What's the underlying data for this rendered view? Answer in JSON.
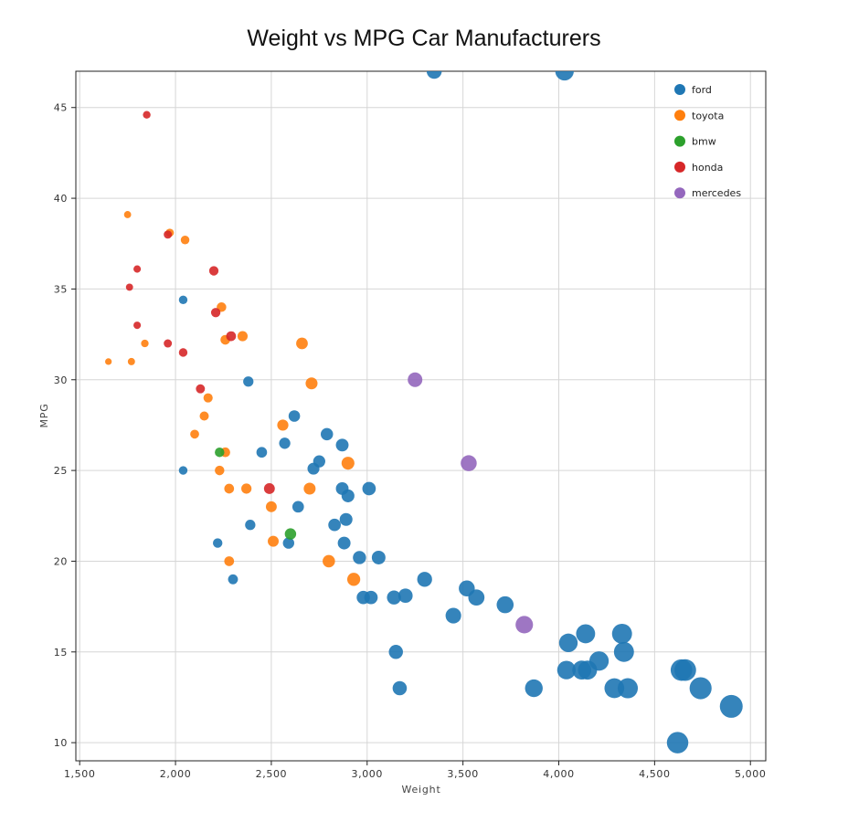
{
  "chart_data": {
    "type": "scatter",
    "title": "Weight vs MPG Car Manufacturers",
    "xlabel": "Weight",
    "ylabel": "MPG",
    "xlim": [
      1480,
      5080
    ],
    "ylim": [
      9,
      47
    ],
    "x_ticks": [
      1500,
      2000,
      2500,
      3000,
      3500,
      4000,
      4500,
      5000
    ],
    "x_tick_labels": [
      "1,500",
      "2,000",
      "2,500",
      "3,000",
      "3,500",
      "4,000",
      "4,500",
      "5,000"
    ],
    "y_ticks": [
      10,
      15,
      20,
      25,
      30,
      35,
      40,
      45
    ],
    "y_tick_labels": [
      "10",
      "15",
      "20",
      "25",
      "30",
      "35",
      "40",
      "45"
    ],
    "grid": true,
    "legend_position": "top-right",
    "size_encoding": "weight",
    "series": [
      {
        "name": "ford",
        "color": "#1f77b4",
        "points": [
          [
            3350,
            47
          ],
          [
            4030,
            47
          ],
          [
            2040,
            34.4
          ],
          [
            2380,
            29.9
          ],
          [
            2620,
            28
          ],
          [
            2450,
            26
          ],
          [
            2570,
            26.5
          ],
          [
            2790,
            27
          ],
          [
            2870,
            26.4
          ],
          [
            2750,
            25.5
          ],
          [
            2720,
            25.1
          ],
          [
            2040,
            25
          ],
          [
            2870,
            24
          ],
          [
            2900,
            23.6
          ],
          [
            3010,
            24
          ],
          [
            2640,
            23
          ],
          [
            2890,
            22.3
          ],
          [
            2830,
            22
          ],
          [
            2390,
            22
          ],
          [
            2220,
            21
          ],
          [
            2590,
            21
          ],
          [
            2880,
            21
          ],
          [
            2960,
            20.2
          ],
          [
            3060,
            20.2
          ],
          [
            2300,
            19
          ],
          [
            2980,
            18
          ],
          [
            3020,
            18
          ],
          [
            3140,
            18
          ],
          [
            3200,
            18.1
          ],
          [
            3300,
            19
          ],
          [
            3520,
            18.5
          ],
          [
            3570,
            18
          ],
          [
            3450,
            17
          ],
          [
            3720,
            17.6
          ],
          [
            3150,
            15
          ],
          [
            3170,
            13
          ],
          [
            3870,
            13
          ],
          [
            4050,
            15.5
          ],
          [
            4140,
            16
          ],
          [
            4330,
            16
          ],
          [
            4340,
            15
          ],
          [
            4210,
            14.5
          ],
          [
            4040,
            14
          ],
          [
            4120,
            14
          ],
          [
            4150,
            14
          ],
          [
            4290,
            13
          ],
          [
            4360,
            13
          ],
          [
            4640,
            14
          ],
          [
            4660,
            14
          ],
          [
            4740,
            13
          ],
          [
            4900,
            12
          ],
          [
            4620,
            10
          ]
        ]
      },
      {
        "name": "toyota",
        "color": "#ff7f0e",
        "points": [
          [
            1750,
            39.1
          ],
          [
            1970,
            38.1
          ],
          [
            2050,
            37.7
          ],
          [
            1650,
            31
          ],
          [
            1770,
            31
          ],
          [
            1840,
            32
          ],
          [
            2240,
            34
          ],
          [
            2260,
            32.2
          ],
          [
            2350,
            32.4
          ],
          [
            2660,
            32
          ],
          [
            2710,
            29.8
          ],
          [
            2170,
            29
          ],
          [
            2150,
            28
          ],
          [
            2100,
            27
          ],
          [
            2560,
            27.5
          ],
          [
            2260,
            26
          ],
          [
            2230,
            25
          ],
          [
            2900,
            25.4
          ],
          [
            2280,
            24
          ],
          [
            2370,
            24
          ],
          [
            2700,
            24
          ],
          [
            2500,
            23
          ],
          [
            2510,
            21.1
          ],
          [
            2280,
            20
          ],
          [
            2800,
            20
          ],
          [
            2930,
            19
          ]
        ]
      },
      {
        "name": "bmw",
        "color": "#2ca02c",
        "points": [
          [
            2230,
            26
          ],
          [
            2600,
            21.5
          ]
        ]
      },
      {
        "name": "honda",
        "color": "#d62728",
        "points": [
          [
            1850,
            44.6
          ],
          [
            1960,
            38
          ],
          [
            1800,
            36.1
          ],
          [
            2200,
            36
          ],
          [
            1760,
            35.1
          ],
          [
            2210,
            33.7
          ],
          [
            1800,
            33
          ],
          [
            2290,
            32.4
          ],
          [
            1960,
            32
          ],
          [
            2040,
            31.5
          ],
          [
            2130,
            29.5
          ],
          [
            2490,
            24
          ]
        ]
      },
      {
        "name": "mercedes",
        "color": "#9467bd",
        "points": [
          [
            3250,
            30
          ],
          [
            3530,
            25.4
          ],
          [
            3820,
            16.5
          ]
        ]
      }
    ]
  }
}
